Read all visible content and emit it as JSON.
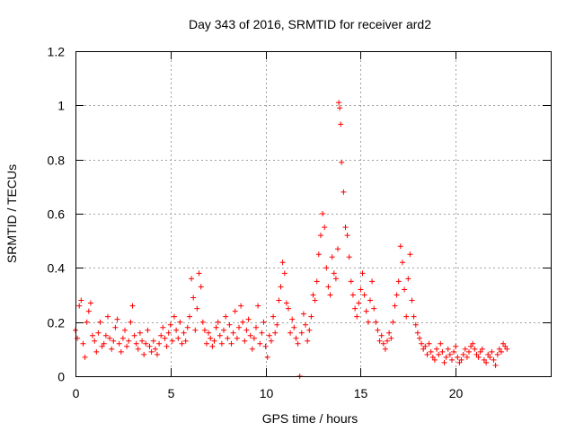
{
  "chart_data": {
    "type": "scatter",
    "title": "Day 343 of 2016, SRMTID for receiver ard2",
    "xlabel": "GPS time / hours",
    "ylabel": "SRMTID / TECUs",
    "xlim": [
      0,
      25
    ],
    "ylim": [
      0,
      1.2
    ],
    "grid": true,
    "marker": "+",
    "color": "#ff0000",
    "x_ticks": [
      0,
      5,
      10,
      15,
      20
    ],
    "y_ticks": [
      0,
      0.2,
      0.4,
      0.6,
      0.8,
      1,
      1.2
    ],
    "x_tick_labels": [
      "0",
      "5",
      "10",
      "15",
      "20"
    ],
    "y_tick_labels": [
      "0",
      "0.2",
      "0.4",
      "0.6",
      "0.8",
      "1",
      "1.2"
    ],
    "series": [
      {
        "name": "SRMTID",
        "x": [
          0.0,
          0.1,
          0.2,
          0.3,
          0.4,
          0.5,
          0.6,
          0.7,
          0.8,
          0.9,
          1.0,
          1.1,
          1.2,
          1.3,
          1.4,
          1.5,
          1.6,
          1.7,
          1.8,
          1.9,
          2.0,
          2.1,
          2.2,
          2.3,
          2.4,
          2.5,
          2.6,
          2.7,
          2.8,
          2.9,
          3.0,
          3.1,
          3.2,
          3.3,
          3.4,
          3.5,
          3.6,
          3.7,
          3.8,
          3.9,
          4.0,
          4.1,
          4.2,
          4.3,
          4.4,
          4.5,
          4.6,
          4.7,
          4.8,
          4.9,
          5.0,
          5.1,
          5.2,
          5.3,
          5.4,
          5.5,
          5.6,
          5.7,
          5.8,
          5.9,
          6.0,
          6.1,
          6.2,
          6.3,
          6.4,
          6.5,
          6.6,
          6.7,
          6.8,
          6.9,
          7.0,
          7.1,
          7.2,
          7.3,
          7.4,
          7.5,
          7.6,
          7.7,
          7.8,
          7.9,
          8.0,
          8.1,
          8.2,
          8.3,
          8.4,
          8.5,
          8.6,
          8.7,
          8.8,
          8.9,
          9.0,
          9.1,
          9.2,
          9.3,
          9.4,
          9.5,
          9.6,
          9.7,
          9.8,
          9.9,
          10.0,
          10.1,
          10.2,
          10.3,
          10.4,
          10.5,
          10.6,
          10.7,
          10.8,
          10.9,
          11.0,
          11.1,
          11.2,
          11.3,
          11.4,
          11.5,
          11.6,
          11.7,
          11.8,
          11.9,
          12.0,
          12.1,
          12.2,
          12.3,
          12.4,
          12.5,
          12.6,
          12.7,
          12.8,
          12.9,
          13.0,
          13.1,
          13.2,
          13.3,
          13.4,
          13.5,
          13.6,
          13.7,
          13.8,
          13.85,
          13.9,
          13.95,
          14.0,
          14.1,
          14.2,
          14.3,
          14.4,
          14.5,
          14.6,
          14.7,
          14.8,
          14.9,
          15.0,
          15.1,
          15.2,
          15.3,
          15.4,
          15.5,
          15.6,
          15.7,
          15.8,
          15.9,
          16.0,
          16.1,
          16.2,
          16.3,
          16.4,
          16.5,
          16.6,
          16.7,
          16.8,
          16.9,
          17.0,
          17.1,
          17.2,
          17.3,
          17.4,
          17.5,
          17.6,
          17.7,
          17.8,
          17.9,
          18.0,
          18.1,
          18.2,
          18.3,
          18.4,
          18.5,
          18.6,
          18.7,
          18.8,
          18.9,
          19.0,
          19.1,
          19.2,
          19.3,
          19.4,
          19.5,
          19.6,
          19.7,
          19.8,
          19.9,
          20.0,
          20.1,
          20.2,
          20.3,
          20.4,
          20.5,
          20.6,
          20.7,
          20.8,
          20.9,
          21.0,
          21.1,
          21.2,
          21.3,
          21.4,
          21.5,
          21.6,
          21.7,
          21.8,
          21.9,
          22.0,
          22.1,
          22.2,
          22.3,
          22.4,
          22.5,
          22.6,
          22.7
        ],
        "y": [
          0.17,
          0.14,
          0.26,
          0.28,
          0.12,
          0.07,
          0.2,
          0.24,
          0.27,
          0.15,
          0.13,
          0.09,
          0.16,
          0.2,
          0.11,
          0.12,
          0.15,
          0.22,
          0.14,
          0.1,
          0.13,
          0.18,
          0.21,
          0.12,
          0.09,
          0.14,
          0.17,
          0.11,
          0.13,
          0.2,
          0.26,
          0.15,
          0.12,
          0.1,
          0.16,
          0.13,
          0.08,
          0.12,
          0.17,
          0.11,
          0.09,
          0.13,
          0.1,
          0.08,
          0.12,
          0.15,
          0.18,
          0.14,
          0.11,
          0.16,
          0.19,
          0.13,
          0.22,
          0.17,
          0.14,
          0.2,
          0.12,
          0.16,
          0.13,
          0.18,
          0.22,
          0.36,
          0.29,
          0.17,
          0.25,
          0.38,
          0.33,
          0.2,
          0.17,
          0.12,
          0.16,
          0.14,
          0.11,
          0.13,
          0.18,
          0.2,
          0.15,
          0.12,
          0.17,
          0.22,
          0.14,
          0.19,
          0.12,
          0.16,
          0.24,
          0.14,
          0.18,
          0.26,
          0.2,
          0.13,
          0.17,
          0.21,
          0.15,
          0.1,
          0.14,
          0.18,
          0.26,
          0.12,
          0.16,
          0.2,
          0.11,
          0.07,
          0.15,
          0.13,
          0.22,
          0.16,
          0.19,
          0.28,
          0.33,
          0.42,
          0.38,
          0.27,
          0.25,
          0.16,
          0.21,
          0.18,
          0.14,
          0.12,
          0.0,
          0.16,
          0.23,
          0.19,
          0.13,
          0.17,
          0.22,
          0.3,
          0.28,
          0.35,
          0.45,
          0.52,
          0.6,
          0.55,
          0.4,
          0.33,
          0.3,
          0.44,
          0.38,
          0.36,
          0.47,
          1.01,
          0.99,
          0.93,
          0.79,
          0.68,
          0.55,
          0.52,
          0.44,
          0.35,
          0.3,
          0.25,
          0.22,
          0.27,
          0.32,
          0.38,
          0.3,
          0.24,
          0.2,
          0.28,
          0.35,
          0.25,
          0.2,
          0.17,
          0.13,
          0.15,
          0.12,
          0.1,
          0.13,
          0.16,
          0.14,
          0.2,
          0.26,
          0.3,
          0.35,
          0.48,
          0.42,
          0.32,
          0.22,
          0.36,
          0.45,
          0.28,
          0.22,
          0.19,
          0.16,
          0.14,
          0.12,
          0.1,
          0.11,
          0.08,
          0.12,
          0.09,
          0.07,
          0.06,
          0.1,
          0.08,
          0.12,
          0.09,
          0.05,
          0.07,
          0.1,
          0.08,
          0.06,
          0.09,
          0.11,
          0.07,
          0.05,
          0.06,
          0.08,
          0.1,
          0.07,
          0.09,
          0.11,
          0.12,
          0.1,
          0.08,
          0.07,
          0.09,
          0.1,
          0.06,
          0.05,
          0.08,
          0.07,
          0.09,
          0.06,
          0.04,
          0.08,
          0.1,
          0.09,
          0.12,
          0.11,
          0.1
        ]
      }
    ]
  }
}
